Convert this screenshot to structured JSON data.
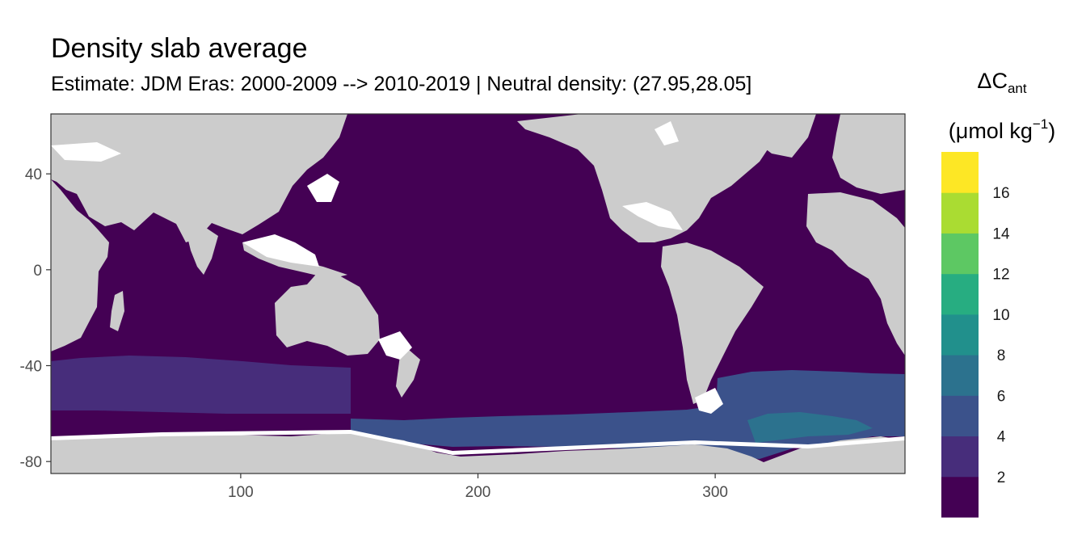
{
  "chart_data": {
    "type": "heatmap",
    "title": "Density slab average",
    "subtitle": "Estimate: JDM Eras: 2000-2009 --> 2010-2019 | Neutral density: (27.95,28.05]",
    "xlabel": "",
    "ylabel": "",
    "xlim": [
      20,
      380
    ],
    "ylim": [
      -85,
      65
    ],
    "x_ticks": [
      100,
      200,
      300
    ],
    "x_tick_labels": [
      "100",
      "200",
      "300"
    ],
    "y_ticks": [
      40,
      0,
      -40,
      -80
    ],
    "y_tick_labels": [
      "40",
      "0",
      "-40",
      "-80"
    ],
    "grid": false,
    "legend": {
      "placement": "right",
      "title_line1": "ΔC",
      "title_sub": "ant",
      "title_line2_pre": "(μmol kg",
      "title_sup": "−1",
      "title_line2_post": ")",
      "bins": [
        0,
        2,
        4,
        6,
        8,
        10,
        12,
        14,
        16,
        18
      ],
      "labels": [
        "2",
        "4",
        "6",
        "8",
        "10",
        "12",
        "14",
        "16"
      ],
      "colors": [
        "#440154",
        "#472D7B",
        "#3B528B",
        "#2C728E",
        "#21908C",
        "#27AD81",
        "#5DC863",
        "#AADC32",
        "#FDE725"
      ]
    },
    "land_color": "#CCCCCC",
    "regions": [
      {
        "name": "indian-ocean-south",
        "lon": [
          20,
          148
        ],
        "lat": [
          -54,
          -37
        ],
        "value": 2.5
      },
      {
        "name": "pacific-southern",
        "lon": [
          148,
          300
        ],
        "lat": [
          -73,
          -60
        ],
        "value": 4.5
      },
      {
        "name": "atlantic-southern",
        "lon": [
          300,
          380
        ],
        "lat": [
          -73,
          -42
        ],
        "value": 5.0
      },
      {
        "name": "weddell-core",
        "lon": [
          315,
          360
        ],
        "lat": [
          -68,
          -60
        ],
        "value": 7.0
      },
      {
        "name": "global-ocean-background",
        "lon": [
          20,
          380
        ],
        "lat": [
          -85,
          65
        ],
        "value": 0.5
      }
    ]
  }
}
